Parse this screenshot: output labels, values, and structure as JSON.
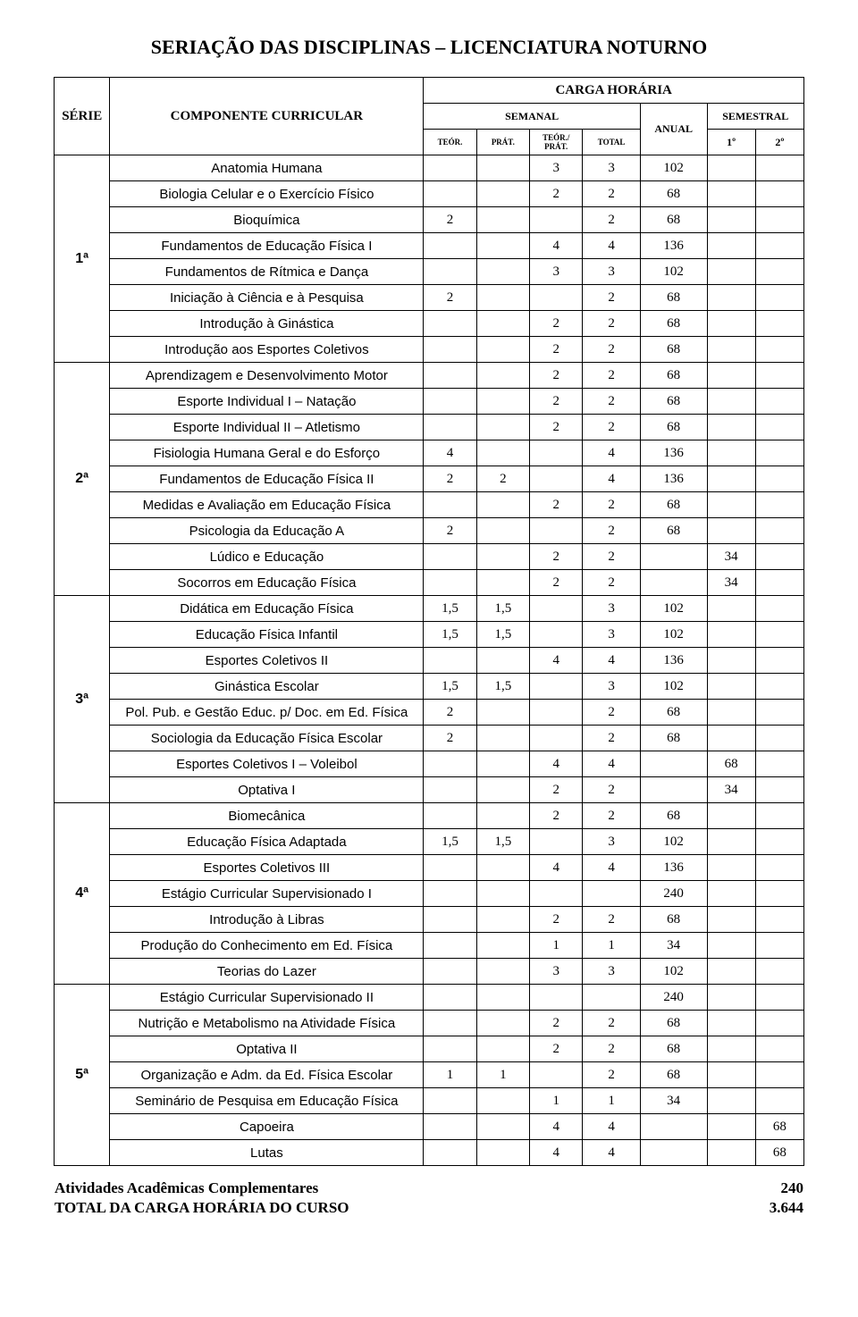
{
  "title": "SERIAÇÃO DAS DISCIPLINAS – LICENCIATURA NOTURNO",
  "headers": {
    "serie": "SÉRIE",
    "componente": "COMPONENTE CURRICULAR",
    "carga": "CARGA HORÁRIA",
    "semanal": "SEMANAL",
    "anual": "ANUAL",
    "semestral": "SEMESTRAL",
    "teor": "TEÓR.",
    "prat": "PRÁT.",
    "teorprat": "TEÓR./ PRÁT.",
    "total": "TOTAL",
    "s1": "1º",
    "s2": "2º"
  },
  "series": [
    {
      "label": "1ª",
      "rows": [
        {
          "name": "Anatomia Humana",
          "teor": "",
          "prat": "",
          "tp": "3",
          "total": "3",
          "anual": "102",
          "s1": "",
          "s2": ""
        },
        {
          "name": "Biologia Celular e o Exercício Físico",
          "teor": "",
          "prat": "",
          "tp": "2",
          "total": "2",
          "anual": "68",
          "s1": "",
          "s2": ""
        },
        {
          "name": "Bioquímica",
          "teor": "2",
          "prat": "",
          "tp": "",
          "total": "2",
          "anual": "68",
          "s1": "",
          "s2": ""
        },
        {
          "name": "Fundamentos de Educação Física I",
          "teor": "",
          "prat": "",
          "tp": "4",
          "total": "4",
          "anual": "136",
          "s1": "",
          "s2": ""
        },
        {
          "name": "Fundamentos de Rítmica e Dança",
          "teor": "",
          "prat": "",
          "tp": "3",
          "total": "3",
          "anual": "102",
          "s1": "",
          "s2": ""
        },
        {
          "name": "Iniciação à Ciência e à Pesquisa",
          "teor": "2",
          "prat": "",
          "tp": "",
          "total": "2",
          "anual": "68",
          "s1": "",
          "s2": ""
        },
        {
          "name": "Introdução à Ginástica",
          "teor": "",
          "prat": "",
          "tp": "2",
          "total": "2",
          "anual": "68",
          "s1": "",
          "s2": ""
        },
        {
          "name": "Introdução aos Esportes Coletivos",
          "teor": "",
          "prat": "",
          "tp": "2",
          "total": "2",
          "anual": "68",
          "s1": "",
          "s2": ""
        }
      ]
    },
    {
      "label": "2ª",
      "rows": [
        {
          "name": "Aprendizagem e Desenvolvimento Motor",
          "teor": "",
          "prat": "",
          "tp": "2",
          "total": "2",
          "anual": "68",
          "s1": "",
          "s2": ""
        },
        {
          "name": "Esporte Individual I – Natação",
          "teor": "",
          "prat": "",
          "tp": "2",
          "total": "2",
          "anual": "68",
          "s1": "",
          "s2": ""
        },
        {
          "name": "Esporte Individual II – Atletismo",
          "teor": "",
          "prat": "",
          "tp": "2",
          "total": "2",
          "anual": "68",
          "s1": "",
          "s2": ""
        },
        {
          "name": "Fisiologia Humana Geral e do Esforço",
          "teor": "4",
          "prat": "",
          "tp": "",
          "total": "4",
          "anual": "136",
          "s1": "",
          "s2": ""
        },
        {
          "name": "Fundamentos de Educação Física II",
          "teor": "2",
          "prat": "2",
          "tp": "",
          "total": "4",
          "anual": "136",
          "s1": "",
          "s2": ""
        },
        {
          "name": "Medidas e Avaliação em Educação Física",
          "teor": "",
          "prat": "",
          "tp": "2",
          "total": "2",
          "anual": "68",
          "s1": "",
          "s2": ""
        },
        {
          "name": "Psicologia da Educação A",
          "teor": "2",
          "prat": "",
          "tp": "",
          "total": "2",
          "anual": "68",
          "s1": "",
          "s2": ""
        },
        {
          "name": "Lúdico e Educação",
          "teor": "",
          "prat": "",
          "tp": "2",
          "total": "2",
          "anual": "",
          "s1": "34",
          "s2": ""
        },
        {
          "name": "Socorros em Educação Física",
          "teor": "",
          "prat": "",
          "tp": "2",
          "total": "2",
          "anual": "",
          "s1": "34",
          "s2": ""
        }
      ]
    },
    {
      "label": "3ª",
      "rows": [
        {
          "name": "Didática em Educação Física",
          "teor": "1,5",
          "prat": "1,5",
          "tp": "",
          "total": "3",
          "anual": "102",
          "s1": "",
          "s2": ""
        },
        {
          "name": "Educação Física Infantil",
          "teor": "1,5",
          "prat": "1,5",
          "tp": "",
          "total": "3",
          "anual": "102",
          "s1": "",
          "s2": ""
        },
        {
          "name": "Esportes Coletivos II",
          "teor": "",
          "prat": "",
          "tp": "4",
          "total": "4",
          "anual": "136",
          "s1": "",
          "s2": ""
        },
        {
          "name": "Ginástica Escolar",
          "teor": "1,5",
          "prat": "1,5",
          "tp": "",
          "total": "3",
          "anual": "102",
          "s1": "",
          "s2": ""
        },
        {
          "name": "Pol. Pub. e Gestão Educ. p/ Doc. em Ed. Física",
          "teor": "2",
          "prat": "",
          "tp": "",
          "total": "2",
          "anual": "68",
          "s1": "",
          "s2": ""
        },
        {
          "name": "Sociologia da Educação Física Escolar",
          "teor": "2",
          "prat": "",
          "tp": "",
          "total": "2",
          "anual": "68",
          "s1": "",
          "s2": ""
        },
        {
          "name": "Esportes Coletivos I – Voleibol",
          "teor": "",
          "prat": "",
          "tp": "4",
          "total": "4",
          "anual": "",
          "s1": "68",
          "s2": ""
        },
        {
          "name": "Optativa I",
          "teor": "",
          "prat": "",
          "tp": "2",
          "total": "2",
          "anual": "",
          "s1": "34",
          "s2": ""
        }
      ]
    },
    {
      "label": "4ª",
      "rows": [
        {
          "name": "Biomecânica",
          "teor": "",
          "prat": "",
          "tp": "2",
          "total": "2",
          "anual": "68",
          "s1": "",
          "s2": ""
        },
        {
          "name": "Educação Física Adaptada",
          "teor": "1,5",
          "prat": "1,5",
          "tp": "",
          "total": "3",
          "anual": "102",
          "s1": "",
          "s2": ""
        },
        {
          "name": "Esportes Coletivos III",
          "teor": "",
          "prat": "",
          "tp": "4",
          "total": "4",
          "anual": "136",
          "s1": "",
          "s2": ""
        },
        {
          "name": "Estágio Curricular Supervisionado I",
          "teor": "",
          "prat": "",
          "tp": "",
          "total": "",
          "anual": "240",
          "s1": "",
          "s2": ""
        },
        {
          "name": "Introdução à Libras",
          "teor": "",
          "prat": "",
          "tp": "2",
          "total": "2",
          "anual": "68",
          "s1": "",
          "s2": ""
        },
        {
          "name": "Produção do Conhecimento em Ed. Física",
          "teor": "",
          "prat": "",
          "tp": "1",
          "total": "1",
          "anual": "34",
          "s1": "",
          "s2": ""
        },
        {
          "name": "Teorias do Lazer",
          "teor": "",
          "prat": "",
          "tp": "3",
          "total": "3",
          "anual": "102",
          "s1": "",
          "s2": ""
        }
      ]
    },
    {
      "label": "5ª",
      "rows": [
        {
          "name": "Estágio Curricular Supervisionado II",
          "teor": "",
          "prat": "",
          "tp": "",
          "total": "",
          "anual": "240",
          "s1": "",
          "s2": ""
        },
        {
          "name": "Nutrição e Metabolismo na Atividade Física",
          "teor": "",
          "prat": "",
          "tp": "2",
          "total": "2",
          "anual": "68",
          "s1": "",
          "s2": ""
        },
        {
          "name": "Optativa II",
          "teor": "",
          "prat": "",
          "tp": "2",
          "total": "2",
          "anual": "68",
          "s1": "",
          "s2": ""
        },
        {
          "name": "Organização e Adm. da Ed. Física Escolar",
          "teor": "1",
          "prat": "1",
          "tp": "",
          "total": "2",
          "anual": "68",
          "s1": "",
          "s2": ""
        },
        {
          "name": "Seminário de Pesquisa em Educação Física",
          "teor": "",
          "prat": "",
          "tp": "1",
          "total": "1",
          "anual": "34",
          "s1": "",
          "s2": ""
        },
        {
          "name": "Capoeira",
          "teor": "",
          "prat": "",
          "tp": "4",
          "total": "4",
          "anual": "",
          "s1": "",
          "s2": "68"
        },
        {
          "name": "Lutas",
          "teor": "",
          "prat": "",
          "tp": "4",
          "total": "4",
          "anual": "",
          "s1": "",
          "s2": "68"
        }
      ]
    }
  ],
  "footer": {
    "comp_label": "Atividades Acadêmicas Complementares",
    "comp_val": "240",
    "total_label": "TOTAL DA CARGA HORÁRIA DO CURSO",
    "total_val": "3.644"
  }
}
